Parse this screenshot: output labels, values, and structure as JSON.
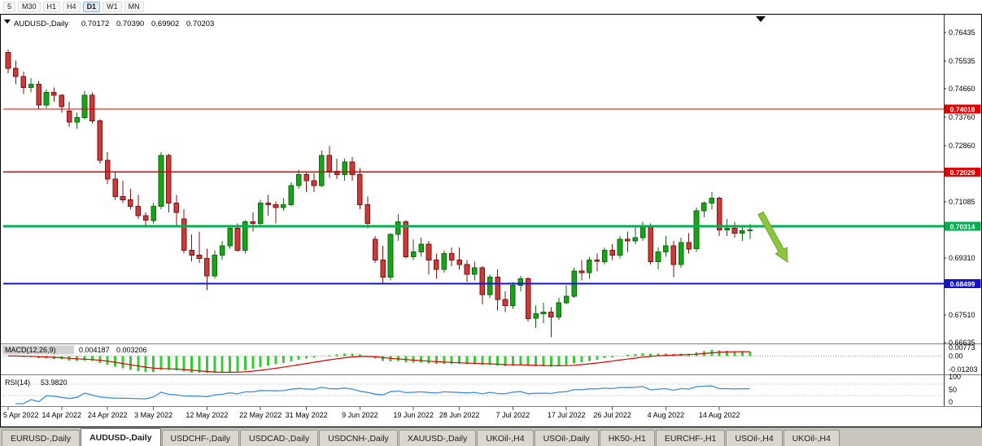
{
  "toolbar": {
    "timeframes": [
      "5",
      "M30",
      "H1",
      "H4",
      "D1",
      "W1",
      "MN"
    ],
    "active": "D1"
  },
  "colors": {
    "bull_fill": "#19a319",
    "bull_stroke": "#0b6b0b",
    "bear_fill": "#cd3a3a",
    "bear_stroke": "#7e1111",
    "macd_hist": "#33cc33",
    "macd_signal": "#e00000",
    "rsi_line": "#3f8fd2",
    "arrow": "#8cc63e"
  },
  "chart_data": {
    "type": "candlestick",
    "symbol": "AUDUSD-,Daily",
    "last_ohlc": {
      "open": "0.70172",
      "high": "0.70390",
      "low": "0.69902",
      "close": "0.70203"
    },
    "y_axis_labels": [
      "0.76435",
      "0.75535",
      "0.74660",
      "0.73760",
      "0.72860",
      "0.71085",
      "0.69310",
      "0.67510",
      "0.66635"
    ],
    "horizontal_lines": [
      {
        "price": 0.74018,
        "label": "0.74018",
        "color": "#e00000",
        "width": 1.4
      },
      {
        "price": 0.72029,
        "label": "0.72029",
        "color": "#e00000",
        "width": 1.4
      },
      {
        "price": 0.70314,
        "label": "0.70314",
        "color": "#00b050",
        "width": 3
      },
      {
        "price": 0.68499,
        "label": "0.68499",
        "color": "#1414cc",
        "width": 2.4
      }
    ],
    "candles": [
      [
        0.758,
        0.759,
        0.7515,
        0.753
      ],
      [
        0.753,
        0.7555,
        0.748,
        0.7505
      ],
      [
        0.7505,
        0.752,
        0.745,
        0.747
      ],
      [
        0.747,
        0.75,
        0.7455,
        0.748
      ],
      [
        0.748,
        0.749,
        0.74,
        0.7415
      ],
      [
        0.7415,
        0.7465,
        0.7405,
        0.7455
      ],
      [
        0.7455,
        0.747,
        0.7425,
        0.7445
      ],
      [
        0.7445,
        0.745,
        0.739,
        0.741
      ],
      [
        0.7395,
        0.7425,
        0.7345,
        0.736
      ],
      [
        0.736,
        0.739,
        0.734,
        0.7375
      ],
      [
        0.7375,
        0.746,
        0.737,
        0.7445
      ],
      [
        0.7445,
        0.7455,
        0.7355,
        0.7365
      ],
      [
        0.7365,
        0.737,
        0.723,
        0.724
      ],
      [
        0.724,
        0.7265,
        0.7165,
        0.718
      ],
      [
        0.718,
        0.7205,
        0.7115,
        0.7125
      ],
      [
        0.7125,
        0.7175,
        0.7105,
        0.7115
      ],
      [
        0.7115,
        0.715,
        0.7085,
        0.7095
      ],
      [
        0.7095,
        0.713,
        0.7055,
        0.7065
      ],
      [
        0.7065,
        0.7075,
        0.703,
        0.705
      ],
      [
        0.705,
        0.7105,
        0.704,
        0.7095
      ],
      [
        0.7095,
        0.7265,
        0.7085,
        0.7255
      ],
      [
        0.7255,
        0.726,
        0.7075,
        0.7105
      ],
      [
        0.7105,
        0.713,
        0.7035,
        0.7075
      ],
      [
        0.7055,
        0.7085,
        0.6945,
        0.6955
      ],
      [
        0.6955,
        0.7005,
        0.692,
        0.694
      ],
      [
        0.694,
        0.7015,
        0.6915,
        0.693
      ],
      [
        0.693,
        0.696,
        0.683,
        0.6875
      ],
      [
        0.6875,
        0.6955,
        0.6865,
        0.694
      ],
      [
        0.694,
        0.6985,
        0.6925,
        0.697
      ],
      [
        0.697,
        0.7035,
        0.696,
        0.7025
      ],
      [
        0.7025,
        0.704,
        0.695,
        0.6955
      ],
      [
        0.6955,
        0.705,
        0.6945,
        0.7045
      ],
      [
        0.7045,
        0.7075,
        0.7015,
        0.704
      ],
      [
        0.704,
        0.7115,
        0.7035,
        0.7105
      ],
      [
        0.7105,
        0.713,
        0.7065,
        0.71
      ],
      [
        0.71,
        0.711,
        0.704,
        0.709
      ],
      [
        0.709,
        0.712,
        0.708,
        0.71
      ],
      [
        0.71,
        0.717,
        0.7095,
        0.716
      ],
      [
        0.716,
        0.721,
        0.715,
        0.7195
      ],
      [
        0.7195,
        0.7205,
        0.714,
        0.7175
      ],
      [
        0.7175,
        0.72,
        0.714,
        0.716
      ],
      [
        0.716,
        0.727,
        0.7155,
        0.7255
      ],
      [
        0.7255,
        0.7285,
        0.7185,
        0.7205
      ],
      [
        0.7205,
        0.7245,
        0.718,
        0.7195
      ],
      [
        0.7195,
        0.7245,
        0.7175,
        0.7235
      ],
      [
        0.7235,
        0.725,
        0.7175,
        0.7195
      ],
      [
        0.7195,
        0.7215,
        0.7085,
        0.71
      ],
      [
        0.71,
        0.7125,
        0.7025,
        0.704
      ],
      [
        0.699,
        0.7,
        0.6915,
        0.6925
      ],
      [
        0.6925,
        0.697,
        0.685,
        0.687
      ],
      [
        0.687,
        0.701,
        0.686,
        0.7005
      ],
      [
        0.7005,
        0.707,
        0.6985,
        0.7045
      ],
      [
        0.7045,
        0.705,
        0.693,
        0.6935
      ],
      [
        0.6935,
        0.699,
        0.6925,
        0.695
      ],
      [
        0.695,
        0.6995,
        0.6935,
        0.6975
      ],
      [
        0.6975,
        0.6985,
        0.688,
        0.6925
      ],
      [
        0.6925,
        0.6945,
        0.6865,
        0.6895
      ],
      [
        0.6895,
        0.6955,
        0.6885,
        0.6945
      ],
      [
        0.6945,
        0.6965,
        0.6905,
        0.6925
      ],
      [
        0.6925,
        0.6965,
        0.6895,
        0.691
      ],
      [
        0.691,
        0.6925,
        0.6855,
        0.688
      ],
      [
        0.688,
        0.692,
        0.686,
        0.69
      ],
      [
        0.69,
        0.6905,
        0.6785,
        0.6815
      ],
      [
        0.6815,
        0.688,
        0.6805,
        0.687
      ],
      [
        0.687,
        0.6895,
        0.6765,
        0.68
      ],
      [
        0.68,
        0.6825,
        0.676,
        0.678
      ],
      [
        0.678,
        0.6855,
        0.677,
        0.6845
      ],
      [
        0.6845,
        0.6875,
        0.6825,
        0.6865
      ],
      [
        0.6865,
        0.687,
        0.673,
        0.674
      ],
      [
        0.674,
        0.678,
        0.671,
        0.6755
      ],
      [
        0.6755,
        0.679,
        0.6725,
        0.676
      ],
      [
        0.676,
        0.6775,
        0.668,
        0.6745
      ],
      [
        0.6745,
        0.6805,
        0.6735,
        0.679
      ],
      [
        0.679,
        0.6845,
        0.6785,
        0.681
      ],
      [
        0.681,
        0.69,
        0.6805,
        0.689
      ],
      [
        0.689,
        0.6925,
        0.686,
        0.6885
      ],
      [
        0.6885,
        0.6935,
        0.6865,
        0.6925
      ],
      [
        0.6925,
        0.6945,
        0.689,
        0.692
      ],
      [
        0.692,
        0.6965,
        0.691,
        0.6955
      ],
      [
        0.6955,
        0.6975,
        0.6925,
        0.694
      ],
      [
        0.694,
        0.7,
        0.693,
        0.699
      ],
      [
        0.699,
        0.7015,
        0.695,
        0.6985
      ],
      [
        0.6985,
        0.703,
        0.6975,
        0.6995
      ],
      [
        0.6995,
        0.7045,
        0.6985,
        0.703
      ],
      [
        0.703,
        0.704,
        0.691,
        0.692
      ],
      [
        0.692,
        0.6965,
        0.6895,
        0.695
      ],
      [
        0.695,
        0.7,
        0.6935,
        0.697
      ],
      [
        0.697,
        0.6985,
        0.687,
        0.691
      ],
      [
        0.691,
        0.6995,
        0.69,
        0.698
      ],
      [
        0.698,
        0.701,
        0.6945,
        0.696
      ],
      [
        0.696,
        0.709,
        0.695,
        0.708
      ],
      [
        0.708,
        0.711,
        0.706,
        0.7105
      ],
      [
        0.7105,
        0.714,
        0.7085,
        0.712
      ],
      [
        0.712,
        0.7125,
        0.7,
        0.702
      ],
      [
        0.702,
        0.7055,
        0.7,
        0.7025
      ],
      [
        0.7025,
        0.7045,
        0.6995,
        0.701
      ],
      [
        0.701,
        0.703,
        0.6985,
        0.7017
      ],
      [
        0.70172,
        0.7039,
        0.69902,
        0.70203
      ]
    ],
    "date_ticks": [
      {
        "index": 0,
        "label": "5 Apr 2022"
      },
      {
        "index": 7,
        "label": "14 Apr 2022"
      },
      {
        "index": 13,
        "label": "24 Apr 2022"
      },
      {
        "index": 19,
        "label": "3 May 2022"
      },
      {
        "index": 26,
        "label": "12 May 2022"
      },
      {
        "index": 33,
        "label": "22 May 2022"
      },
      {
        "index": 39,
        "label": "31 May 2022"
      },
      {
        "index": 46,
        "label": "9 Jun 2022"
      },
      {
        "index": 53,
        "label": "19 Jun 2022"
      },
      {
        "index": 59,
        "label": "28 Jun 2022"
      },
      {
        "index": 66,
        "label": "7 Jul 2022"
      },
      {
        "index": 73,
        "label": "17 Jul 2022"
      },
      {
        "index": 79,
        "label": "26 Jul 2022"
      },
      {
        "index": 86,
        "label": "4 Aug 2022"
      },
      {
        "index": 93,
        "label": "14 Aug 2022"
      }
    ],
    "indicators": [
      {
        "name": "MACD(12,26,9)",
        "values": [
          "0.004187",
          "0.003206"
        ],
        "y_axis": [
          "0.00773",
          "0.00",
          "-0.01203"
        ],
        "scale_max": 0.00773,
        "scale_min": -0.01203
      },
      {
        "name": "RSI(14)",
        "values": [
          "53.9820"
        ],
        "y_axis": [
          "100",
          "50",
          "0"
        ],
        "levels": [
          70,
          30
        ]
      }
    ]
  },
  "tabs": [
    {
      "label": "EURUSD-,Daily",
      "active": false
    },
    {
      "label": "AUDUSD-,Daily",
      "active": true
    },
    {
      "label": "USDCHF-,Daily",
      "active": false
    },
    {
      "label": "USDCAD-,Daily",
      "active": false
    },
    {
      "label": "USDCNH-,Daily",
      "active": false
    },
    {
      "label": "XAUUSD-,Daily",
      "active": false
    },
    {
      "label": "UKOil-,H4",
      "active": false
    },
    {
      "label": "USOil-,Daily",
      "active": false
    },
    {
      "label": "HK50-,H1",
      "active": false
    },
    {
      "label": "EURCHF-,H1",
      "active": false
    },
    {
      "label": "USOil-,H4",
      "active": false
    },
    {
      "label": "UKOil-,H4",
      "active": false
    }
  ]
}
